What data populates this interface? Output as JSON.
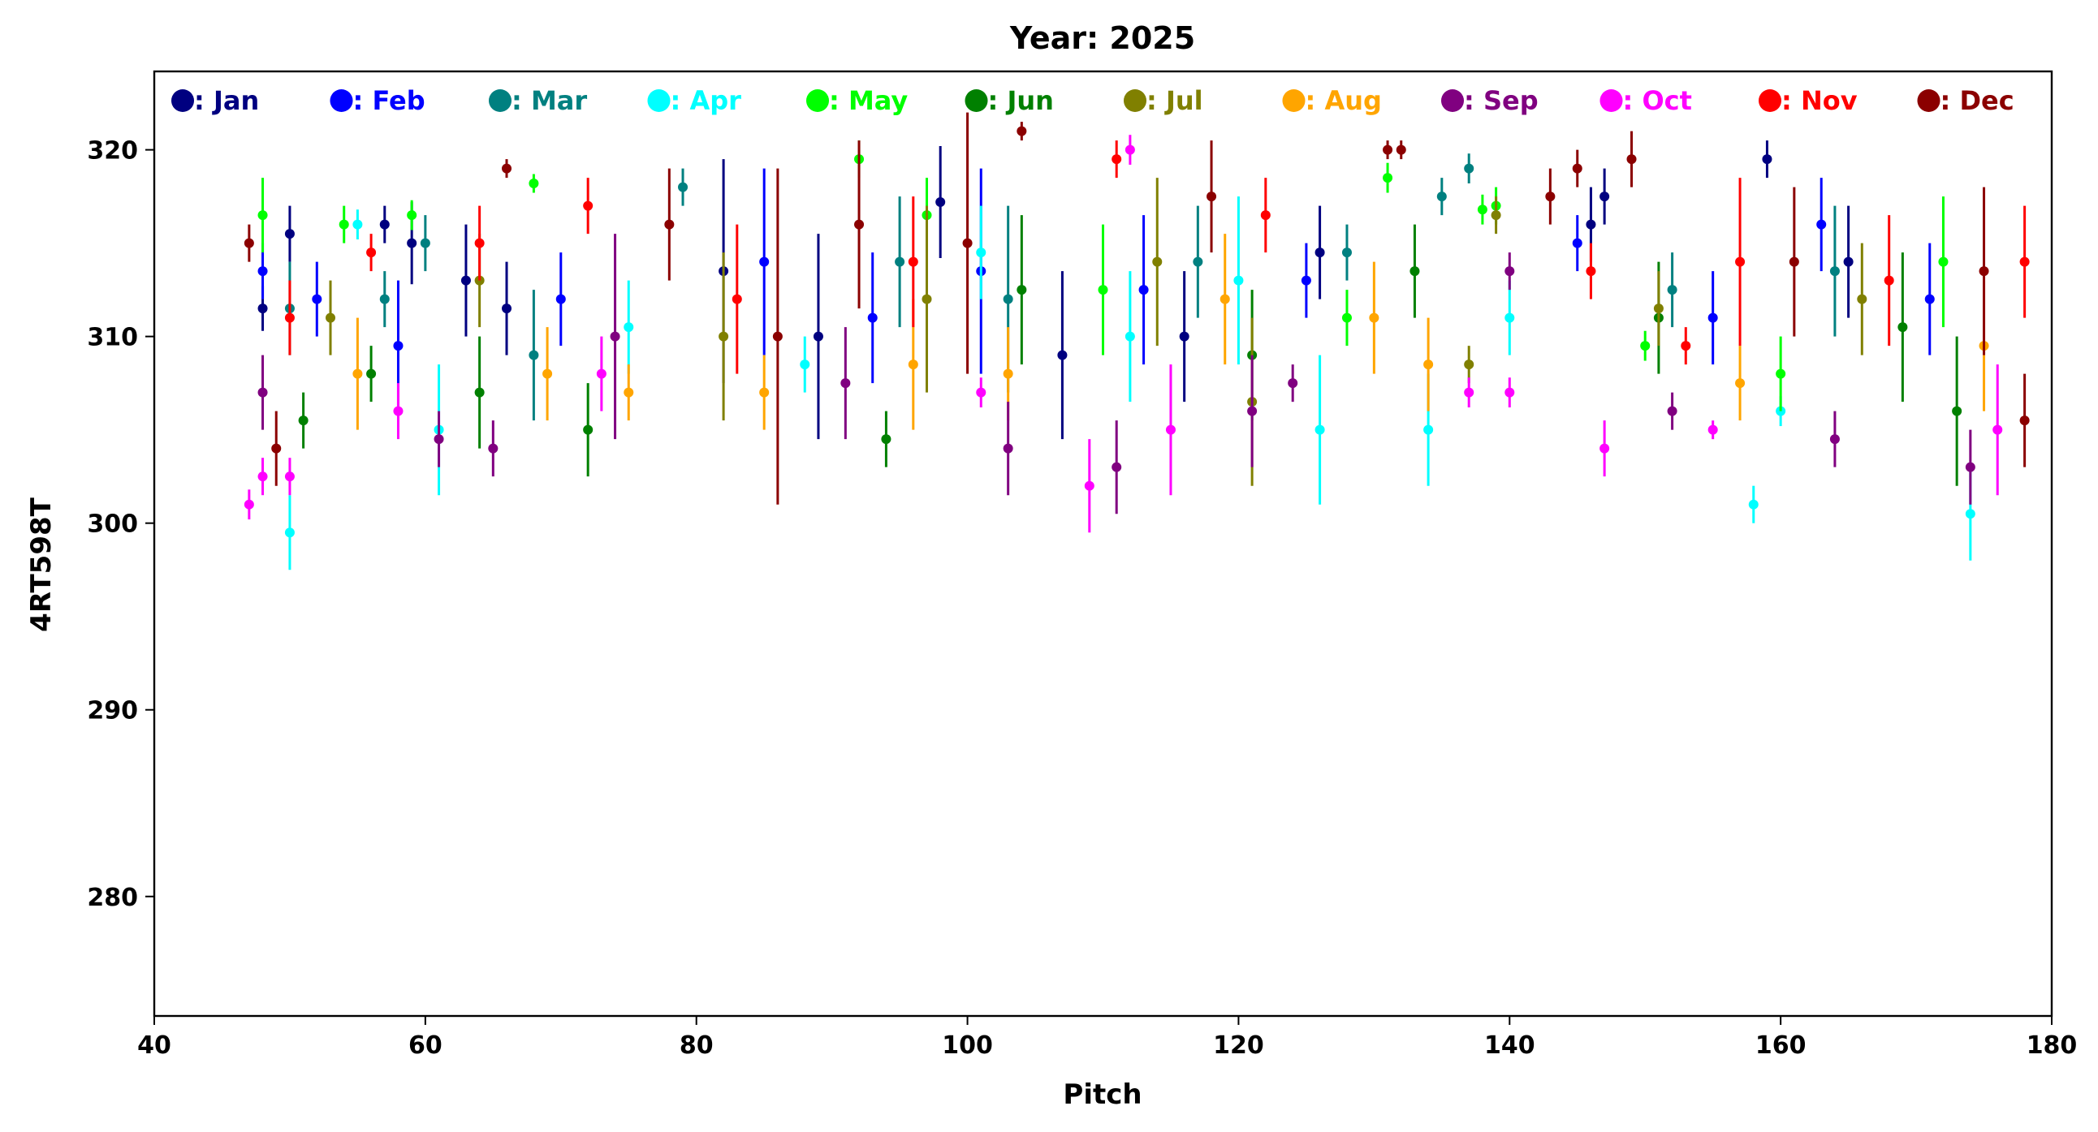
{
  "chart_data": {
    "type": "scatter",
    "title": "Year: 2025",
    "xlabel": "Pitch",
    "ylabel": "4RT598T",
    "xlim": [
      40,
      180
    ],
    "ylim": [
      273.6,
      324.2
    ],
    "xticks": [
      "40",
      "60",
      "80",
      "100",
      "120",
      "140",
      "160",
      "180"
    ],
    "yticks": [
      "280",
      "290",
      "300",
      "310",
      "320"
    ],
    "grid": false,
    "legend_position": "top",
    "marker": "circle with vertical error bar",
    "series": [
      {
        "name": ": Jan",
        "color": "#000080",
        "points": [
          [
            48,
            311.5,
            1.2
          ],
          [
            50,
            315.5,
            1.5
          ],
          [
            57,
            316,
            1.0
          ],
          [
            59,
            315,
            2.2
          ],
          [
            63,
            313,
            3.0
          ],
          [
            66,
            311.5,
            2.5
          ],
          [
            82,
            313.5,
            6.0
          ],
          [
            89,
            310,
            5.5
          ],
          [
            98,
            317.2,
            3.0
          ],
          [
            107,
            309,
            4.5
          ],
          [
            116,
            310,
            3.5
          ],
          [
            126,
            314.5,
            2.5
          ],
          [
            146,
            316,
            2.0
          ],
          [
            147,
            317.5,
            1.5
          ],
          [
            159,
            319.5,
            1.0
          ],
          [
            165,
            314,
            3.0
          ]
        ]
      },
      {
        "name": ": Feb",
        "color": "#0000ff",
        "points": [
          [
            48,
            313.5,
            1.5
          ],
          [
            52,
            312,
            2.0
          ],
          [
            58,
            309.5,
            3.5
          ],
          [
            70,
            312,
            2.5
          ],
          [
            85,
            314,
            5.0
          ],
          [
            93,
            311,
            3.5
          ],
          [
            101,
            313.5,
            5.5
          ],
          [
            113,
            312.5,
            4.0
          ],
          [
            125,
            313,
            2.0
          ],
          [
            145,
            315,
            1.5
          ],
          [
            155,
            311,
            2.5
          ],
          [
            163,
            316,
            2.5
          ],
          [
            171,
            312,
            3.0
          ]
        ]
      },
      {
        "name": ": Mar",
        "color": "#008080",
        "points": [
          [
            50,
            311.5,
            2.5
          ],
          [
            57,
            312,
            1.5
          ],
          [
            60,
            315,
            1.5
          ],
          [
            68,
            309,
            3.5
          ],
          [
            79,
            318,
            1.0
          ],
          [
            95,
            314,
            3.5
          ],
          [
            103,
            312,
            5.0
          ],
          [
            117,
            314,
            3.0
          ],
          [
            128,
            314.5,
            1.5
          ],
          [
            135,
            317.5,
            1.0
          ],
          [
            137,
            319,
            0.8
          ],
          [
            152,
            312.5,
            2.0
          ],
          [
            164,
            313.5,
            3.5
          ]
        ]
      },
      {
        "name": ": Apr",
        "color": "#00ffff",
        "points": [
          [
            50,
            299.5,
            2.0
          ],
          [
            55,
            316,
            0.8
          ],
          [
            61,
            305,
            3.5
          ],
          [
            75,
            310.5,
            2.5
          ],
          [
            88,
            308.5,
            1.5
          ],
          [
            101,
            314.5,
            2.5
          ],
          [
            112,
            310,
            3.5
          ],
          [
            120,
            313,
            4.5
          ],
          [
            126,
            305,
            4.0
          ],
          [
            134,
            305,
            3.0
          ],
          [
            140,
            311,
            2.0
          ],
          [
            158,
            301,
            1.0
          ],
          [
            160,
            306,
            0.8
          ],
          [
            174,
            300.5,
            2.5
          ]
        ]
      },
      {
        "name": ": May",
        "color": "#00ff00",
        "points": [
          [
            48,
            316.5,
            2.0
          ],
          [
            54,
            316,
            1.0
          ],
          [
            59,
            316.5,
            0.8
          ],
          [
            68,
            318.2,
            0.5
          ],
          [
            92,
            319.5,
            1.0
          ],
          [
            97,
            316.5,
            2.0
          ],
          [
            110,
            312.5,
            3.5
          ],
          [
            128,
            311,
            1.5
          ],
          [
            131,
            318.5,
            0.8
          ],
          [
            138,
            316.8,
            0.8
          ],
          [
            139,
            317,
            1.0
          ],
          [
            150,
            309.5,
            0.8
          ],
          [
            160,
            308,
            2.0
          ],
          [
            172,
            314,
            3.5
          ]
        ]
      },
      {
        "name": ": Jun",
        "color": "#008000",
        "points": [
          [
            51,
            305.5,
            1.5
          ],
          [
            56,
            308,
            1.5
          ],
          [
            64,
            307,
            3.0
          ],
          [
            72,
            305,
            2.5
          ],
          [
            94,
            304.5,
            1.5
          ],
          [
            104,
            312.5,
            4.0
          ],
          [
            121,
            309,
            3.5
          ],
          [
            133,
            313.5,
            2.5
          ],
          [
            151,
            311,
            3.0
          ],
          [
            169,
            310.5,
            4.0
          ],
          [
            173,
            306,
            4.0
          ]
        ]
      },
      {
        "name": ": Jul",
        "color": "#808000",
        "points": [
          [
            53,
            311,
            2.0
          ],
          [
            64,
            313,
            2.5
          ],
          [
            82,
            310,
            4.5
          ],
          [
            97,
            312,
            5.0
          ],
          [
            114,
            314,
            4.5
          ],
          [
            121,
            306.5,
            4.5
          ],
          [
            137,
            308.5,
            1.0
          ],
          [
            139,
            316.5,
            1.0
          ],
          [
            151,
            311.5,
            2.0
          ],
          [
            166,
            312,
            3.0
          ]
        ]
      },
      {
        "name": ": Aug",
        "color": "#ffa500",
        "points": [
          [
            55,
            308,
            3.0
          ],
          [
            69,
            308,
            2.5
          ],
          [
            75,
            307,
            1.5
          ],
          [
            85,
            307,
            2.0
          ],
          [
            96,
            308.5,
            3.5
          ],
          [
            103,
            308,
            2.5
          ],
          [
            119,
            312,
            3.5
          ],
          [
            130,
            311,
            3.0
          ],
          [
            134,
            308.5,
            2.5
          ],
          [
            157,
            307.5,
            2.0
          ],
          [
            175,
            309.5,
            3.5
          ]
        ]
      },
      {
        "name": ": Sep",
        "color": "#800080",
        "points": [
          [
            48,
            307,
            2.0
          ],
          [
            61,
            304.5,
            1.5
          ],
          [
            65,
            304,
            1.5
          ],
          [
            74,
            310,
            5.5
          ],
          [
            91,
            307.5,
            3.0
          ],
          [
            103,
            304,
            2.5
          ],
          [
            111,
            303,
            2.5
          ],
          [
            121,
            306,
            3.0
          ],
          [
            124,
            307.5,
            1.0
          ],
          [
            140,
            313.5,
            1.0
          ],
          [
            152,
            306,
            1.0
          ],
          [
            164,
            304.5,
            1.5
          ],
          [
            174,
            303,
            2.0
          ]
        ]
      },
      {
        "name": ": Oct",
        "color": "#ff00ff",
        "points": [
          [
            47,
            301,
            0.8
          ],
          [
            48,
            302.5,
            1.0
          ],
          [
            50,
            302.5,
            1.0
          ],
          [
            58,
            306,
            1.5
          ],
          [
            73,
            308,
            2.0
          ],
          [
            101,
            307,
            0.8
          ],
          [
            109,
            302,
            2.5
          ],
          [
            112,
            320,
            0.8
          ],
          [
            115,
            305,
            3.5
          ],
          [
            137,
            307,
            0.8
          ],
          [
            140,
            307,
            0.8
          ],
          [
            147,
            304,
            1.5
          ],
          [
            155,
            305,
            0.5
          ],
          [
            176,
            305,
            3.5
          ]
        ]
      },
      {
        "name": ": Nov",
        "color": "#ff0000",
        "points": [
          [
            50,
            311,
            2.0
          ],
          [
            56,
            314.5,
            1.0
          ],
          [
            64,
            315,
            2.0
          ],
          [
            72,
            317,
            1.5
          ],
          [
            83,
            312,
            4.0
          ],
          [
            96,
            314,
            3.5
          ],
          [
            111,
            319.5,
            1.0
          ],
          [
            122,
            316.5,
            2.0
          ],
          [
            146,
            313.5,
            1.5
          ],
          [
            153,
            309.5,
            1.0
          ],
          [
            157,
            314,
            4.5
          ],
          [
            168,
            313,
            3.5
          ],
          [
            178,
            314,
            3.0
          ]
        ]
      },
      {
        "name": ": Dec",
        "color": "#8b0000",
        "points": [
          [
            47,
            315,
            1.0
          ],
          [
            49,
            304,
            2.0
          ],
          [
            66,
            319,
            0.5
          ],
          [
            78,
            316,
            3.0
          ],
          [
            86,
            310,
            9.0
          ],
          [
            92,
            316,
            4.5
          ],
          [
            100,
            315,
            7.0
          ],
          [
            104,
            321,
            0.5
          ],
          [
            118,
            317.5,
            3.0
          ],
          [
            131,
            320,
            0.5
          ],
          [
            132,
            320,
            0.5
          ],
          [
            143,
            317.5,
            1.5
          ],
          [
            145,
            319,
            1.0
          ],
          [
            149,
            319.5,
            1.5
          ],
          [
            161,
            314,
            4.0
          ],
          [
            175,
            313.5,
            4.5
          ],
          [
            178,
            305.5,
            2.5
          ]
        ]
      }
    ]
  }
}
